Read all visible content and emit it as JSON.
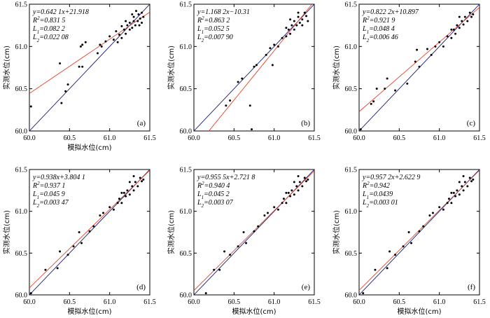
{
  "figure": {
    "colors": {
      "fit_line": "#e8402a",
      "identity_line": "#1a1a6e",
      "points": "#000000"
    }
  },
  "chart_data": [
    {
      "type": "scatter",
      "panel_label": "(a)",
      "xlabel": "模拟水位(cm)",
      "ylabel": "实测水位(cm)",
      "xlim": [
        60.0,
        61.5
      ],
      "ylim": [
        60.0,
        61.5
      ],
      "xticks": [
        "60.0",
        "60.5",
        "61.0",
        "61.5"
      ],
      "yticks": [
        "60.0",
        "60.5",
        "61.0",
        "61.5"
      ],
      "equation": "y=0.642 1x+21.918",
      "r2": "R²=0.831 5",
      "l1": "L₁=0.082 2",
      "l2": "L₂=0.022 08",
      "fit": {
        "slope": 0.6421,
        "intercept": 21.918
      },
      "points": [
        [
          60.02,
          60.29
        ],
        [
          60.38,
          60.8
        ],
        [
          60.4,
          60.33
        ],
        [
          60.45,
          60.47
        ],
        [
          60.48,
          60.55
        ],
        [
          60.62,
          60.76
        ],
        [
          60.64,
          61.0
        ],
        [
          60.66,
          60.76
        ],
        [
          60.66,
          61.02
        ],
        [
          60.7,
          61.05
        ],
        [
          60.85,
          60.92
        ],
        [
          60.88,
          61.02
        ],
        [
          60.9,
          61.0
        ],
        [
          60.95,
          61.06
        ],
        [
          61.0,
          61.12
        ],
        [
          61.05,
          61.08
        ],
        [
          61.1,
          61.05
        ],
        [
          61.08,
          61.18
        ],
        [
          61.12,
          61.14
        ],
        [
          61.15,
          61.1
        ],
        [
          61.18,
          61.2
        ],
        [
          61.2,
          61.15
        ],
        [
          61.22,
          61.25
        ],
        [
          61.25,
          61.2
        ],
        [
          61.25,
          61.28
        ],
        [
          61.28,
          61.22
        ],
        [
          61.3,
          61.3
        ],
        [
          61.3,
          61.35
        ],
        [
          61.32,
          61.25
        ],
        [
          61.35,
          61.3
        ],
        [
          61.36,
          61.38
        ],
        [
          61.38,
          61.33
        ],
        [
          61.4,
          61.4
        ],
        [
          61.4,
          61.28
        ],
        [
          61.42,
          61.35
        ],
        [
          61.2,
          61.3
        ],
        [
          61.15,
          61.24
        ],
        [
          61.28,
          61.38
        ],
        [
          61.33,
          61.42
        ],
        [
          61.37,
          61.25
        ]
      ]
    },
    {
      "type": "scatter",
      "panel_label": "(b)",
      "xlabel": "",
      "ylabel": "实测水位(cm)",
      "xlim": [
        60.0,
        61.5
      ],
      "ylim": [
        60.0,
        61.5
      ],
      "xticks": [
        "60.0",
        "60.5",
        "61.0",
        "61.5"
      ],
      "yticks": [
        "60.0",
        "60.5",
        "61.0",
        "61.5"
      ],
      "equation": "y=1.168 2x−10.31",
      "r2": "R²=0.863 2",
      "l1": "L₁=0.052 5",
      "l2": "L₂=0.007 90",
      "fit": {
        "slope": 1.1682,
        "intercept": -10.31
      },
      "points": [
        [
          60.4,
          60.3
        ],
        [
          60.45,
          60.36
        ],
        [
          60.55,
          60.58
        ],
        [
          60.6,
          60.62
        ],
        [
          60.7,
          60.3
        ],
        [
          60.75,
          60.76
        ],
        [
          60.78,
          60.78
        ],
        [
          60.9,
          60.9
        ],
        [
          60.95,
          60.98
        ],
        [
          60.98,
          60.78
        ],
        [
          61.0,
          61.02
        ],
        [
          61.05,
          61.0
        ],
        [
          61.1,
          61.1
        ],
        [
          61.15,
          61.12
        ],
        [
          61.18,
          61.2
        ],
        [
          61.2,
          61.15
        ],
        [
          61.22,
          61.25
        ],
        [
          61.25,
          61.2
        ],
        [
          61.25,
          61.3
        ],
        [
          61.28,
          61.25
        ],
        [
          61.3,
          61.35
        ],
        [
          61.32,
          61.28
        ],
        [
          61.35,
          61.32
        ],
        [
          61.38,
          61.4
        ],
        [
          61.4,
          61.36
        ],
        [
          61.42,
          61.3
        ],
        [
          61.3,
          61.4
        ],
        [
          61.35,
          61.25
        ],
        [
          61.2,
          61.32
        ],
        [
          61.15,
          61.22
        ],
        [
          60.72,
          60.02
        ]
      ]
    },
    {
      "type": "scatter",
      "panel_label": "(c)",
      "xlabel": "",
      "ylabel": "实测水位(cm)",
      "xlim": [
        60.0,
        61.5
      ],
      "ylim": [
        60.0,
        61.5
      ],
      "xticks": [
        "60.0",
        "60.5",
        "61.0",
        "61.5"
      ],
      "yticks": [
        "60.0",
        "60.5",
        "61.0",
        "61.5"
      ],
      "equation": "y=0.822 2x+10.897",
      "r2": "R²=0.921 9",
      "l1": "L₁=0.048 4",
      "l2": "L₂=0.006 46",
      "fit": {
        "slope": 0.8222,
        "intercept": 10.897
      },
      "points": [
        [
          60.02,
          60.02
        ],
        [
          60.15,
          60.32
        ],
        [
          60.18,
          60.35
        ],
        [
          60.22,
          60.5
        ],
        [
          60.32,
          60.5
        ],
        [
          60.35,
          60.62
        ],
        [
          60.45,
          60.48
        ],
        [
          60.6,
          60.56
        ],
        [
          60.7,
          60.82
        ],
        [
          60.72,
          60.96
        ],
        [
          60.75,
          60.76
        ],
        [
          60.85,
          60.97
        ],
        [
          60.9,
          60.9
        ],
        [
          60.95,
          61.0
        ],
        [
          61.0,
          61.05
        ],
        [
          61.05,
          61.0
        ],
        [
          61.1,
          61.12
        ],
        [
          61.15,
          61.1
        ],
        [
          61.18,
          61.2
        ],
        [
          61.2,
          61.15
        ],
        [
          61.22,
          61.25
        ],
        [
          61.25,
          61.22
        ],
        [
          61.28,
          61.3
        ],
        [
          61.3,
          61.26
        ],
        [
          61.32,
          61.35
        ],
        [
          61.35,
          61.3
        ],
        [
          61.38,
          61.4
        ],
        [
          61.4,
          61.35
        ],
        [
          61.42,
          61.38
        ],
        [
          61.25,
          61.35
        ],
        [
          61.15,
          61.2
        ]
      ]
    },
    {
      "type": "scatter",
      "panel_label": "(d)",
      "xlabel": "模拟水位(cm)",
      "ylabel": "实测水位(cm)",
      "xlim": [
        60.0,
        61.5
      ],
      "ylim": [
        60.0,
        61.5
      ],
      "xticks": [
        "60.0",
        "60.5",
        "61.0",
        "61.5"
      ],
      "yticks": [
        "60.0",
        "60.5",
        "61.0",
        "61.5"
      ],
      "equation": "y=0.938x+3.804 1",
      "r2": "R²=0.937 1",
      "l1": "L₁=0.045 9",
      "l2": "L₂=0.003 47",
      "fit": {
        "slope": 0.938,
        "intercept": 3.8041
      },
      "points": [
        [
          60.02,
          60.02
        ],
        [
          60.2,
          60.3
        ],
        [
          60.35,
          60.32
        ],
        [
          60.38,
          60.52
        ],
        [
          60.48,
          60.48
        ],
        [
          60.55,
          60.58
        ],
        [
          60.62,
          60.75
        ],
        [
          60.65,
          60.62
        ],
        [
          60.75,
          60.76
        ],
        [
          60.8,
          60.82
        ],
        [
          60.88,
          60.95
        ],
        [
          60.92,
          60.98
        ],
        [
          61.0,
          61.05
        ],
        [
          61.05,
          61.02
        ],
        [
          61.1,
          61.1
        ],
        [
          61.12,
          61.15
        ],
        [
          61.15,
          61.1
        ],
        [
          61.18,
          61.22
        ],
        [
          61.2,
          61.18
        ],
        [
          61.22,
          61.25
        ],
        [
          61.25,
          61.2
        ],
        [
          61.28,
          61.3
        ],
        [
          61.3,
          61.25
        ],
        [
          61.32,
          61.35
        ],
        [
          61.35,
          61.3
        ],
        [
          61.38,
          61.4
        ],
        [
          61.4,
          61.36
        ],
        [
          61.42,
          61.38
        ],
        [
          61.25,
          61.35
        ],
        [
          61.15,
          61.22
        ],
        [
          61.3,
          61.42
        ]
      ]
    },
    {
      "type": "scatter",
      "panel_label": "(e)",
      "xlabel": "模拟水位(cm)",
      "ylabel": "实测水位(cm)",
      "xlim": [
        60.0,
        61.5
      ],
      "ylim": [
        60.0,
        61.5
      ],
      "xticks": [
        "60.0",
        "60.5",
        "61.0",
        "61.5"
      ],
      "yticks": [
        "60.0",
        "60.5",
        "61.0",
        "61.5"
      ],
      "equation": "y=0.955 5x+2.721 8",
      "r2": "R²=0.940 4",
      "l1": "L₁=0.045 2",
      "l2": "L₂=0.003 07",
      "fit": {
        "slope": 0.9555,
        "intercept": 2.7218
      },
      "points": [
        [
          60.15,
          60.02
        ],
        [
          60.25,
          60.3
        ],
        [
          60.32,
          60.3
        ],
        [
          60.38,
          60.52
        ],
        [
          60.45,
          60.48
        ],
        [
          60.55,
          60.58
        ],
        [
          60.62,
          60.75
        ],
        [
          60.65,
          60.62
        ],
        [
          60.75,
          60.76
        ],
        [
          60.8,
          60.82
        ],
        [
          60.88,
          60.95
        ],
        [
          60.92,
          60.98
        ],
        [
          61.0,
          61.05
        ],
        [
          61.05,
          61.02
        ],
        [
          61.1,
          61.1
        ],
        [
          61.12,
          61.15
        ],
        [
          61.15,
          61.1
        ],
        [
          61.18,
          61.22
        ],
        [
          61.2,
          61.18
        ],
        [
          61.22,
          61.25
        ],
        [
          61.25,
          61.2
        ],
        [
          61.28,
          61.3
        ],
        [
          61.3,
          61.25
        ],
        [
          61.32,
          61.35
        ],
        [
          61.35,
          61.3
        ],
        [
          61.38,
          61.4
        ],
        [
          61.4,
          61.36
        ],
        [
          61.42,
          61.38
        ],
        [
          61.25,
          61.35
        ],
        [
          61.15,
          61.22
        ],
        [
          61.3,
          61.42
        ]
      ]
    },
    {
      "type": "scatter",
      "panel_label": "(f)",
      "xlabel": "模拟水位(cm)",
      "ylabel": "实测水位(cm)",
      "xlim": [
        60.0,
        61.5
      ],
      "ylim": [
        60.0,
        61.5
      ],
      "xticks": [
        "60.0",
        "60.5",
        "61.0",
        "61.5"
      ],
      "yticks": [
        "60.0",
        "60.5",
        "61.0",
        "61.5"
      ],
      "equation": "y=0.957 2x+2.622 9",
      "r2": "R²=0.942",
      "l1": "L₁=0.0439",
      "l2": "L₂=0.003 01",
      "fit": {
        "slope": 0.9572,
        "intercept": 2.6229
      },
      "points": [
        [
          60.05,
          60.02
        ],
        [
          60.2,
          60.3
        ],
        [
          60.35,
          60.32
        ],
        [
          60.38,
          60.52
        ],
        [
          60.45,
          60.48
        ],
        [
          60.55,
          60.58
        ],
        [
          60.62,
          60.75
        ],
        [
          60.65,
          60.62
        ],
        [
          60.75,
          60.76
        ],
        [
          60.8,
          60.82
        ],
        [
          60.88,
          60.95
        ],
        [
          60.92,
          60.98
        ],
        [
          61.0,
          61.05
        ],
        [
          61.05,
          61.02
        ],
        [
          61.1,
          61.1
        ],
        [
          61.12,
          61.15
        ],
        [
          61.15,
          61.1
        ],
        [
          61.18,
          61.22
        ],
        [
          61.2,
          61.18
        ],
        [
          61.22,
          61.25
        ],
        [
          61.25,
          61.2
        ],
        [
          61.28,
          61.3
        ],
        [
          61.3,
          61.25
        ],
        [
          61.32,
          61.35
        ],
        [
          61.35,
          61.3
        ],
        [
          61.38,
          61.4
        ],
        [
          61.4,
          61.36
        ],
        [
          61.42,
          61.38
        ],
        [
          61.25,
          61.35
        ],
        [
          61.15,
          61.22
        ],
        [
          61.3,
          61.42
        ]
      ]
    }
  ]
}
